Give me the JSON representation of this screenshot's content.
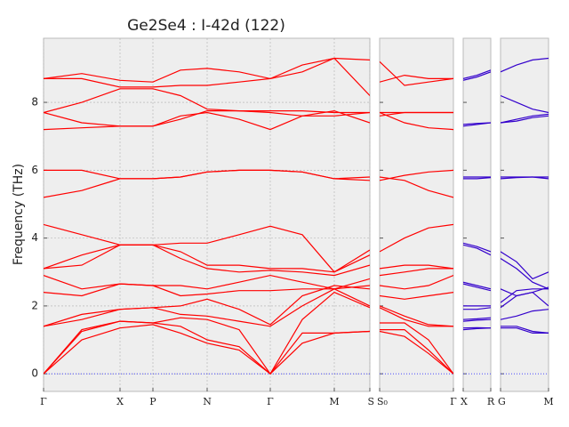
{
  "chart_data": [
    {
      "type": "line",
      "title": "Ge2Se4 : I-42d (122)",
      "y_label": "Frequency (THz)",
      "color": "#ff0000",
      "grid": true,
      "xlim": [
        0,
        3.67
      ],
      "ylim": [
        -0.52,
        9.89
      ],
      "yticks": [
        0,
        2,
        4,
        6,
        8
      ],
      "xticks": [
        {
          "value": 0,
          "label": "Γ"
        },
        {
          "value": 0.86,
          "label": "X"
        },
        {
          "value": 1.23,
          "label": "P"
        },
        {
          "value": 1.84,
          "label": "N"
        },
        {
          "value": 2.55,
          "label": "Γ"
        },
        {
          "value": 3.27,
          "label": "M"
        },
        {
          "value": 3.67,
          "label": "S"
        }
      ],
      "x": [
        0,
        0.43,
        0.86,
        1.23,
        1.54,
        1.84,
        2.2,
        2.55,
        2.91,
        3.27,
        3.67
      ],
      "series": [
        {
          "values": [
            0,
            1.0,
            1.35,
            1.45,
            1.2,
            0.9,
            0.7,
            0,
            0.9,
            1.2,
            1.25
          ]
        },
        {
          "values": [
            0,
            1.25,
            1.55,
            1.5,
            1.4,
            1.0,
            0.8,
            0,
            1.2,
            1.2,
            1.25
          ]
        },
        {
          "values": [
            0,
            1.3,
            1.55,
            1.5,
            1.65,
            1.6,
            1.3,
            0,
            1.6,
            2.4,
            1.95
          ]
        },
        {
          "values": [
            1.4,
            1.6,
            1.9,
            1.95,
            1.75,
            1.7,
            1.55,
            1.4,
            2.0,
            2.5,
            2.0
          ]
        },
        {
          "values": [
            1.4,
            1.75,
            1.9,
            1.95,
            2.0,
            2.2,
            1.9,
            1.45,
            2.3,
            2.6,
            2.5
          ]
        },
        {
          "values": [
            2.4,
            2.3,
            2.65,
            2.6,
            2.3,
            2.35,
            2.45,
            2.45,
            2.5,
            2.5,
            2.6
          ]
        },
        {
          "values": [
            2.9,
            2.5,
            2.65,
            2.6,
            2.6,
            2.5,
            2.7,
            2.9,
            2.7,
            2.5,
            2.8
          ]
        },
        {
          "values": [
            3.1,
            3.2,
            3.8,
            3.8,
            3.4,
            3.1,
            3.0,
            3.05,
            3.0,
            2.9,
            3.2
          ]
        },
        {
          "values": [
            3.1,
            3.5,
            3.8,
            3.8,
            3.6,
            3.2,
            3.2,
            3.1,
            3.1,
            3.0,
            3.5
          ]
        },
        {
          "values": [
            4.4,
            4.1,
            3.8,
            3.8,
            3.85,
            3.85,
            4.1,
            4.35,
            4.1,
            3.0,
            3.65
          ]
        },
        {
          "values": [
            5.2,
            5.4,
            5.75,
            5.75,
            5.8,
            5.95,
            6.0,
            6.0,
            5.95,
            5.75,
            5.8
          ]
        },
        {
          "values": [
            6.0,
            6.0,
            5.75,
            5.75,
            5.8,
            5.95,
            6.0,
            6.0,
            5.95,
            5.75,
            5.7
          ]
        },
        {
          "values": [
            7.2,
            7.25,
            7.3,
            7.3,
            7.6,
            7.7,
            7.5,
            7.2,
            7.6,
            7.75,
            7.4
          ]
        },
        {
          "values": [
            7.7,
            7.4,
            7.3,
            7.3,
            7.5,
            7.75,
            7.75,
            7.7,
            7.6,
            7.6,
            7.7
          ]
        },
        {
          "values": [
            7.7,
            8.0,
            8.4,
            8.4,
            8.2,
            7.8,
            7.75,
            7.75,
            7.75,
            7.7,
            7.7
          ]
        },
        {
          "values": [
            8.7,
            8.7,
            8.45,
            8.45,
            8.5,
            8.5,
            8.6,
            8.7,
            8.9,
            9.3,
            8.2
          ]
        },
        {
          "values": [
            8.7,
            8.85,
            8.65,
            8.6,
            8.95,
            9.0,
            8.9,
            8.7,
            9.1,
            9.3,
            9.25
          ]
        }
      ]
    },
    {
      "type": "line",
      "color": "#ff0000",
      "xlim": [
        0,
        0.83
      ],
      "ylim": [
        -0.52,
        9.89
      ],
      "yticks": [
        0,
        2,
        4,
        6,
        8
      ],
      "xticks": [
        {
          "value": 0,
          "label": "S₀"
        },
        {
          "value": 0.83,
          "label": "Γ"
        }
      ],
      "x": [
        0,
        0.28,
        0.55,
        0.83
      ],
      "series": [
        {
          "values": [
            1.25,
            1.1,
            0.6,
            0
          ]
        },
        {
          "values": [
            1.3,
            1.3,
            0.7,
            0
          ]
        },
        {
          "values": [
            1.5,
            1.5,
            1.0,
            0
          ]
        },
        {
          "values": [
            1.95,
            1.6,
            1.4,
            1.4
          ]
        },
        {
          "values": [
            2.0,
            1.7,
            1.45,
            1.4
          ]
        },
        {
          "values": [
            2.3,
            2.2,
            2.3,
            2.4
          ]
        },
        {
          "values": [
            2.6,
            2.5,
            2.6,
            2.9
          ]
        },
        {
          "values": [
            2.9,
            3.0,
            3.1,
            3.1
          ]
        },
        {
          "values": [
            3.1,
            3.2,
            3.2,
            3.1
          ]
        },
        {
          "values": [
            3.6,
            4.0,
            4.3,
            4.4
          ]
        },
        {
          "values": [
            5.8,
            5.7,
            5.4,
            5.2
          ]
        },
        {
          "values": [
            5.7,
            5.85,
            5.95,
            6.0
          ]
        },
        {
          "values": [
            7.6,
            7.7,
            7.7,
            7.7
          ]
        },
        {
          "values": [
            7.7,
            7.7,
            7.7,
            7.7
          ]
        },
        {
          "values": [
            7.7,
            7.4,
            7.25,
            7.2
          ]
        },
        {
          "values": [
            8.6,
            8.8,
            8.7,
            8.7
          ]
        },
        {
          "values": [
            9.2,
            8.5,
            8.6,
            8.7
          ]
        }
      ]
    },
    {
      "type": "line",
      "color": "#3300cc",
      "xlim": [
        0,
        0.31
      ],
      "ylim": [
        -0.52,
        9.89
      ],
      "yticks": [
        0,
        2,
        4,
        6,
        8
      ],
      "xticks": [
        {
          "value": 0,
          "label": "X"
        },
        {
          "value": 0.31,
          "label": "R"
        }
      ],
      "x": [
        0,
        0.155,
        0.31
      ],
      "series": [
        {
          "values": [
            1.3,
            1.33,
            1.35
          ]
        },
        {
          "values": [
            1.35,
            1.36,
            1.35
          ]
        },
        {
          "values": [
            1.55,
            1.58,
            1.6
          ]
        },
        {
          "values": [
            1.6,
            1.62,
            1.65
          ]
        },
        {
          "values": [
            1.9,
            1.9,
            1.95
          ]
        },
        {
          "values": [
            2.0,
            2.0,
            2.0
          ]
        },
        {
          "values": [
            2.65,
            2.55,
            2.45
          ]
        },
        {
          "values": [
            2.7,
            2.6,
            2.5
          ]
        },
        {
          "values": [
            3.8,
            3.7,
            3.5
          ]
        },
        {
          "values": [
            3.85,
            3.75,
            3.6
          ]
        },
        {
          "values": [
            5.75,
            5.75,
            5.78
          ]
        },
        {
          "values": [
            5.8,
            5.8,
            5.8
          ]
        },
        {
          "values": [
            7.3,
            7.35,
            7.4
          ]
        },
        {
          "values": [
            7.35,
            7.38,
            7.4
          ]
        },
        {
          "values": [
            8.65,
            8.75,
            8.9
          ]
        },
        {
          "values": [
            8.7,
            8.8,
            8.95
          ]
        }
      ]
    },
    {
      "type": "line",
      "color": "#3300cc",
      "xlim": [
        0,
        0.54
      ],
      "ylim": [
        -0.52,
        9.89
      ],
      "yticks": [
        0,
        2,
        4,
        6,
        8
      ],
      "xticks": [
        {
          "value": 0,
          "label": "G"
        },
        {
          "value": 0.54,
          "label": "M"
        }
      ],
      "x": [
        0,
        0.18,
        0.36,
        0.54
      ],
      "series": [
        {
          "values": [
            1.35,
            1.35,
            1.2,
            1.2
          ]
        },
        {
          "values": [
            1.4,
            1.4,
            1.25,
            1.2
          ]
        },
        {
          "values": [
            1.6,
            1.7,
            1.85,
            1.9
          ]
        },
        {
          "values": [
            1.95,
            2.3,
            2.4,
            2.0
          ]
        },
        {
          "values": [
            2.1,
            2.45,
            2.5,
            2.5
          ]
        },
        {
          "values": [
            2.5,
            2.3,
            2.4,
            2.55
          ]
        },
        {
          "values": [
            3.4,
            3.1,
            2.7,
            2.5
          ]
        },
        {
          "values": [
            3.6,
            3.3,
            2.8,
            3.0
          ]
        },
        {
          "values": [
            5.8,
            5.8,
            5.8,
            5.75
          ]
        },
        {
          "values": [
            5.75,
            5.78,
            5.8,
            5.8
          ]
        },
        {
          "values": [
            7.4,
            7.5,
            7.6,
            7.65
          ]
        },
        {
          "values": [
            7.4,
            7.45,
            7.55,
            7.6
          ]
        },
        {
          "values": [
            8.2,
            8.0,
            7.8,
            7.7
          ]
        },
        {
          "values": [
            8.9,
            9.1,
            9.25,
            9.3
          ]
        }
      ]
    }
  ]
}
